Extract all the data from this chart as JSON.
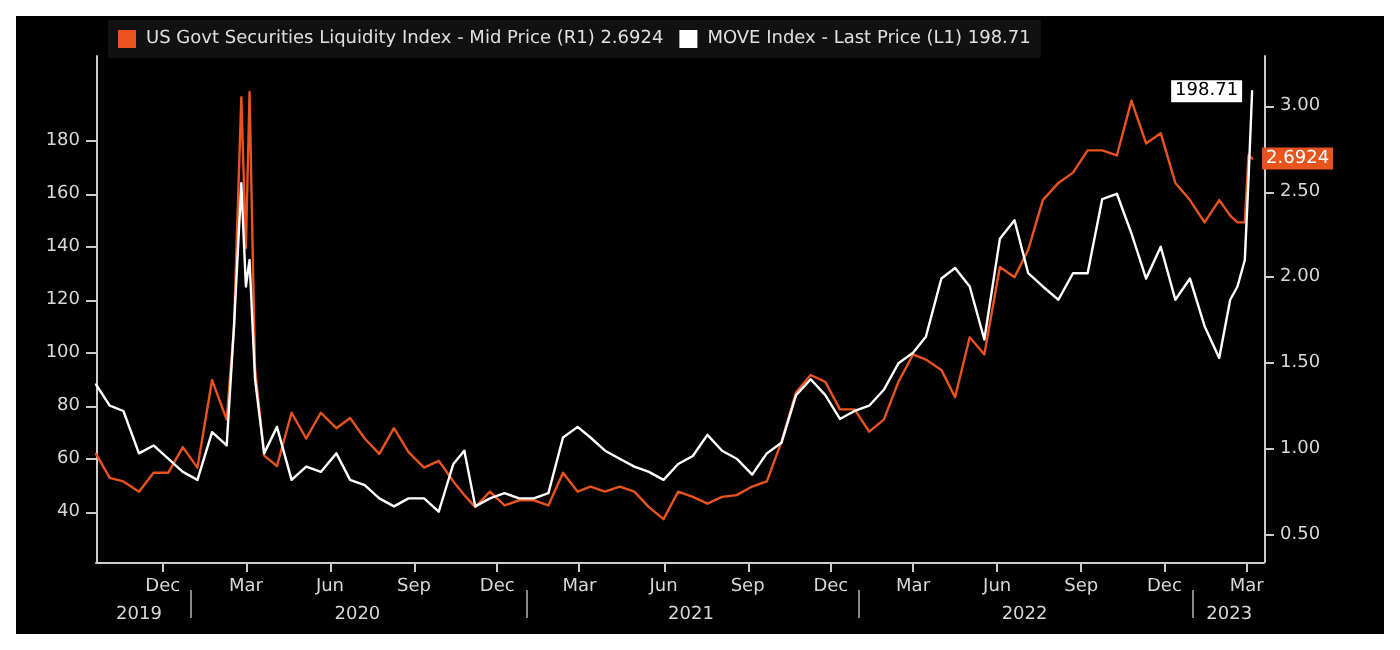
{
  "chart_data": {
    "type": "line",
    "legend": "top left",
    "marker": "none",
    "line_style": "solid",
    "grid": false,
    "x": [
      "2019-09-19",
      "2019-10-04",
      "2019-10-19",
      "2019-11-05",
      "2019-11-21",
      "2019-12-07",
      "2019-12-23",
      "2020-01-08",
      "2020-01-24",
      "2020-02-09",
      "2020-02-17",
      "2020-02-25",
      "2020-03-01",
      "2020-03-05",
      "2020-03-11",
      "2020-03-21",
      "2020-04-04",
      "2020-04-20",
      "2020-05-06",
      "2020-05-22",
      "2020-06-08",
      "2020-06-23",
      "2020-07-09",
      "2020-07-25",
      "2020-08-10",
      "2020-08-26",
      "2020-09-12",
      "2020-09-28",
      "2020-10-14",
      "2020-10-26",
      "2020-11-07",
      "2020-11-23",
      "2020-12-09",
      "2020-12-25",
      "2021-01-10",
      "2021-01-26",
      "2021-02-11",
      "2021-02-27",
      "2021-03-13",
      "2021-03-29",
      "2021-04-14",
      "2021-04-30",
      "2021-05-16",
      "2021-06-01",
      "2021-06-17",
      "2021-07-03",
      "2021-07-19",
      "2021-08-04",
      "2021-08-20",
      "2021-09-06",
      "2021-09-22",
      "2021-10-08",
      "2021-10-24",
      "2021-11-09",
      "2021-11-25",
      "2021-12-11",
      "2021-12-27",
      "2022-01-12",
      "2022-01-28",
      "2022-02-13",
      "2022-03-01",
      "2022-03-15",
      "2022-04-01",
      "2022-04-16",
      "2022-05-02",
      "2022-05-18",
      "2022-06-04",
      "2022-06-20",
      "2022-07-05",
      "2022-07-21",
      "2022-08-07",
      "2022-08-23",
      "2022-09-08",
      "2022-09-24",
      "2022-10-10",
      "2022-10-26",
      "2022-11-11",
      "2022-11-27",
      "2022-12-13",
      "2022-12-29",
      "2023-01-14",
      "2023-01-30",
      "2023-02-11",
      "2023-02-19",
      "2023-02-27",
      "2023-03-03",
      "2023-03-07"
    ],
    "series": [
      {
        "name": "US Govt Securities Liquidity Index - Mid Price (R1) 2.6924",
        "color": "#e8531e",
        "axis": "y2",
        "values": [
          0.97,
          0.83,
          0.81,
          0.75,
          0.86,
          0.86,
          1.01,
          0.89,
          1.4,
          1.17,
          1.71,
          3.05,
          2.17,
          3.08,
          1.47,
          0.96,
          0.9,
          1.21,
          1.06,
          1.21,
          1.12,
          1.18,
          1.06,
          0.97,
          1.12,
          0.98,
          0.89,
          0.93,
          0.81,
          0.73,
          0.66,
          0.75,
          0.67,
          0.7,
          0.7,
          0.67,
          0.86,
          0.75,
          0.78,
          0.75,
          0.78,
          0.75,
          0.66,
          0.59,
          0.75,
          0.72,
          0.68,
          0.72,
          0.73,
          0.78,
          0.81,
          1.04,
          1.33,
          1.43,
          1.39,
          1.23,
          1.23,
          1.1,
          1.17,
          1.39,
          1.55,
          1.52,
          1.46,
          1.3,
          1.65,
          1.55,
          2.06,
          2.0,
          2.16,
          2.45,
          2.55,
          2.61,
          2.74,
          2.74,
          2.71,
          3.03,
          2.78,
          2.84,
          2.55,
          2.45,
          2.32,
          2.45,
          2.36,
          2.32,
          2.32,
          2.71,
          2.6924
        ],
        "value_labels": [
          null,
          null,
          null,
          null,
          null,
          null,
          null,
          null,
          null,
          null,
          null,
          null,
          null,
          null,
          null,
          null,
          null,
          null,
          null,
          null,
          null,
          null,
          null,
          null,
          null,
          null,
          null,
          null,
          null,
          null,
          null,
          null,
          null,
          null,
          null,
          null,
          null,
          null,
          null,
          null,
          null,
          null,
          null,
          null,
          null,
          null,
          null,
          null,
          null,
          null,
          null,
          null,
          null,
          null,
          null,
          null,
          null,
          null,
          null,
          null,
          null,
          null,
          null,
          null,
          null,
          null,
          null,
          null,
          null,
          null,
          null,
          null,
          null,
          null,
          null,
          null,
          null,
          null,
          null,
          null,
          null,
          null,
          null,
          null,
          null,
          null,
          "2.6924"
        ]
      },
      {
        "name": "MOVE Index - Last Price (L1) 198.71",
        "color": "#ffffff",
        "values": [
          88,
          80,
          78,
          62,
          65,
          60,
          55,
          52,
          70,
          65,
          110,
          164,
          125,
          135,
          90,
          62,
          72,
          52,
          57,
          55,
          62,
          52,
          50,
          45,
          42,
          45,
          45,
          40,
          58,
          63,
          42,
          45,
          47,
          45,
          45,
          47,
          68,
          72,
          68,
          63,
          60,
          57,
          55,
          52,
          58,
          61,
          69,
          63,
          60,
          54,
          62,
          66,
          84,
          90,
          84,
          75,
          78,
          80,
          86,
          96,
          100,
          106,
          128,
          132,
          125,
          105,
          143,
          150,
          130,
          125,
          120,
          130,
          130,
          158,
          160,
          145,
          128,
          140,
          120,
          128,
          110,
          98,
          120,
          125,
          135,
          165,
          198.71
        ],
        "value_labels": [
          null,
          null,
          null,
          null,
          null,
          null,
          null,
          null,
          null,
          null,
          null,
          null,
          null,
          null,
          null,
          null,
          null,
          null,
          null,
          null,
          null,
          null,
          null,
          null,
          null,
          null,
          null,
          null,
          null,
          null,
          null,
          null,
          null,
          null,
          null,
          null,
          null,
          null,
          null,
          null,
          null,
          null,
          null,
          null,
          null,
          null,
          null,
          null,
          null,
          null,
          null,
          null,
          null,
          null,
          null,
          null,
          null,
          null,
          null,
          null,
          null,
          null,
          null,
          null,
          null,
          null,
          null,
          null,
          null,
          null,
          null,
          null,
          null,
          null,
          null,
          null,
          null,
          null,
          null,
          null,
          null,
          null,
          null,
          null,
          null,
          null,
          "198.71"
        ]
      }
    ],
    "xlim": [
      "2019-09-19",
      "2023-03-20"
    ],
    "xticks": [
      {
        "value": "2019-12-01",
        "label": "Dec"
      },
      {
        "value": "2020-03-01",
        "label": "Mar"
      },
      {
        "value": "2020-06-01",
        "label": "Jun"
      },
      {
        "value": "2020-09-01",
        "label": "Sep"
      },
      {
        "value": "2020-12-01",
        "label": "Dec"
      },
      {
        "value": "2021-03-01",
        "label": "Mar"
      },
      {
        "value": "2021-06-01",
        "label": "Jun"
      },
      {
        "value": "2021-09-01",
        "label": "Sep"
      },
      {
        "value": "2021-12-01",
        "label": "Dec"
      },
      {
        "value": "2022-03-01",
        "label": "Mar"
      },
      {
        "value": "2022-06-01",
        "label": "Jun"
      },
      {
        "value": "2022-09-01",
        "label": "Sep"
      },
      {
        "value": "2022-12-01",
        "label": "Dec"
      },
      {
        "value": "2023-03-01",
        "label": "Mar"
      }
    ],
    "x2lim": [
      "2019-09-19",
      "2023-03-20"
    ],
    "x2ticks": [
      {
        "value": "2019-11-05",
        "label": "2019"
      },
      {
        "value": "2020-01-01",
        "label": null
      },
      {
        "value": "2020-07-01",
        "label": "2020"
      },
      {
        "value": "2021-01-01",
        "label": null
      },
      {
        "value": "2021-07-01",
        "label": "2021"
      },
      {
        "value": "2022-01-01",
        "label": null
      },
      {
        "value": "2022-07-01",
        "label": "2022"
      },
      {
        "value": "2023-01-01",
        "label": null
      },
      {
        "value": "2023-02-10",
        "label": "2023"
      }
    ],
    "ylim": [
      21,
      212
    ],
    "yticks": [
      40,
      60,
      80,
      100,
      120,
      140,
      160,
      180
    ],
    "y2lim": [
      0.34,
      3.29
    ],
    "y2ticks": [
      {
        "value": 0.5,
        "label": "0.50"
      },
      {
        "value": 1,
        "label": "1.00"
      },
      {
        "value": 1.5,
        "label": "1.50"
      },
      {
        "value": 2,
        "label": "2.00"
      },
      {
        "value": 2.5,
        "label": "2.50"
      },
      {
        "value": 3,
        "label": "3.00"
      }
    ]
  }
}
